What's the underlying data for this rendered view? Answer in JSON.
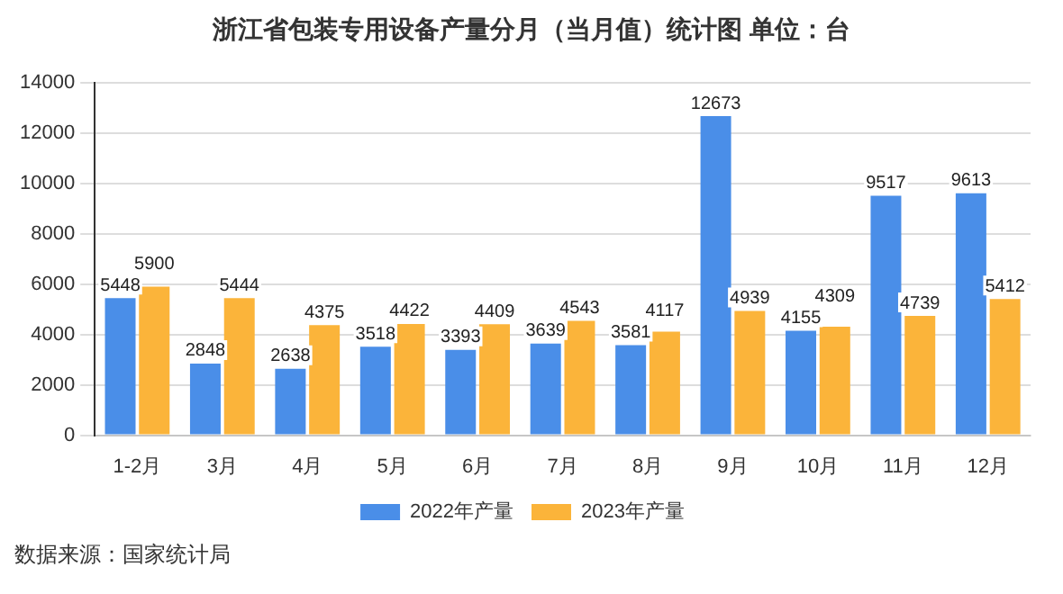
{
  "chart_data": {
    "type": "bar",
    "title": "浙江省包装专用设备产量分月（当月值）统计图 单位：台",
    "categories": [
      "1-2月",
      "3月",
      "4月",
      "5月",
      "6月",
      "7月",
      "8月",
      "9月",
      "10月",
      "11月",
      "12月"
    ],
    "series": [
      {
        "name": "2022年产量",
        "color": "#4a8ee8",
        "values": [
          5448,
          2848,
          2638,
          3518,
          3393,
          3639,
          3581,
          12673,
          4155,
          9517,
          9613
        ]
      },
      {
        "name": "2023年产量",
        "color": "#fbb43a",
        "values": [
          5900,
          5444,
          4375,
          4422,
          4409,
          4543,
          4117,
          4939,
          4309,
          4739,
          5412
        ]
      }
    ],
    "ylim": [
      0,
      14000
    ],
    "yticks": [
      0,
      2000,
      4000,
      6000,
      8000,
      10000,
      12000,
      14000
    ],
    "grid": "y",
    "legend": "bottom",
    "data_labels": true,
    "annotations": [
      "数据来源：国家统计局"
    ]
  }
}
